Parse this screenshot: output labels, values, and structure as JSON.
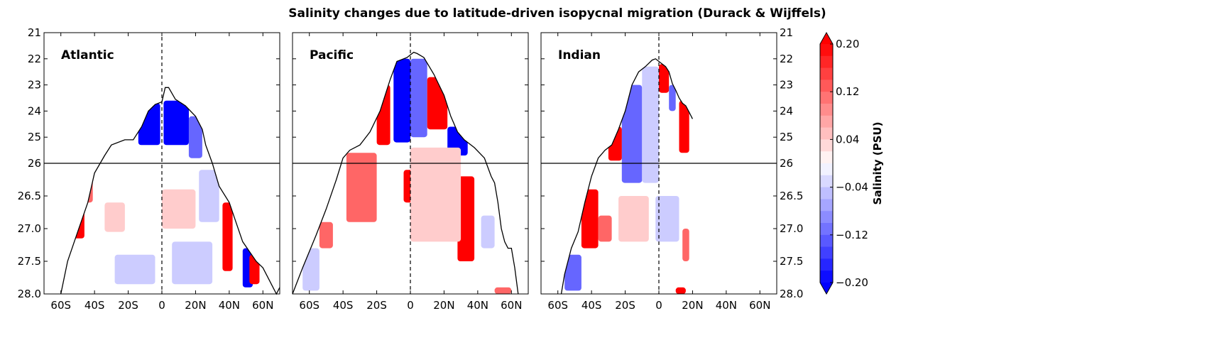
{
  "chart_data": {
    "type": "heatmap",
    "title": "Salinity changes due to latitude-driven isopycnal migration (Durack & Wijffels)",
    "colorbar": {
      "label": "Salinity (PSU)",
      "min": -0.2,
      "max": 0.2,
      "step": 0.02,
      "tick_values": [
        0.2,
        0.12,
        0.04,
        -0.04,
        -0.12,
        -0.2
      ],
      "tick_labels": [
        "0.20",
        "0.12",
        "0.04",
        "−0.04",
        "−0.12",
        "−0.20"
      ],
      "colors": {
        "neg": "#0000ff",
        "zero": "#ffffff",
        "pos": "#ff0000"
      },
      "extend": "both"
    },
    "x_ticks": [
      {
        "lat": -60,
        "label": "60S"
      },
      {
        "lat": -40,
        "label": "40S"
      },
      {
        "lat": -20,
        "label": "20S"
      },
      {
        "lat": 0,
        "label": "0"
      },
      {
        "lat": 20,
        "label": "20N"
      },
      {
        "lat": 40,
        "label": "40N"
      },
      {
        "lat": 60,
        "label": "60N"
      }
    ],
    "xlim": [
      -70,
      70
    ],
    "y_upper": {
      "range": [
        21,
        26
      ],
      "ticks": [
        21,
        22,
        23,
        24,
        25,
        26
      ],
      "labels": [
        "21",
        "22",
        "23",
        "24",
        "25",
        "26"
      ]
    },
    "y_lower": {
      "range": [
        26,
        28
      ],
      "ticks": [
        26.5,
        27.0,
        27.5,
        28.0
      ],
      "labels": [
        "26.5",
        "27.0",
        "27.5",
        "28.0"
      ]
    },
    "divider_density": 26,
    "equator_line": "dashed",
    "panels": [
      {
        "name": "Atlantic",
        "surface_outcrop": [
          [
            -60,
            28.0
          ],
          [
            -56,
            27.5
          ],
          [
            -50,
            27.05
          ],
          [
            -44,
            26.6
          ],
          [
            -40,
            26.15
          ],
          [
            -34,
            25.7
          ],
          [
            -30,
            25.3
          ],
          [
            -22,
            25.1
          ],
          [
            -17,
            25.1
          ],
          [
            -12,
            24.6
          ],
          [
            -8,
            24.0
          ],
          [
            -4,
            23.75
          ],
          [
            0,
            23.65
          ],
          [
            2,
            23.1
          ],
          [
            4,
            23.1
          ],
          [
            8,
            23.55
          ],
          [
            14,
            23.8
          ],
          [
            20,
            24.2
          ],
          [
            24,
            24.7
          ],
          [
            26,
            25.3
          ],
          [
            30,
            26.0
          ],
          [
            34,
            26.35
          ],
          [
            40,
            26.6
          ],
          [
            44,
            26.9
          ],
          [
            48,
            27.2
          ],
          [
            52,
            27.35
          ],
          [
            56,
            27.5
          ],
          [
            60,
            27.6
          ],
          [
            64,
            27.8
          ],
          [
            68,
            28.0
          ],
          [
            70,
            27.9
          ]
        ],
        "anomalies": [
          {
            "lat": [
              -14,
              -1
            ],
            "dens": [
              23.7,
              25.3
            ],
            "value": -0.2
          },
          {
            "lat": [
              1,
              16
            ],
            "dens": [
              23.6,
              25.3
            ],
            "value": -0.2
          },
          {
            "lat": [
              16,
              24
            ],
            "dens": [
              24.2,
              25.8
            ],
            "value": -0.12
          },
          {
            "lat": [
              -54,
              -46
            ],
            "dens": [
              26.6,
              27.15
            ],
            "value": 0.2
          },
          {
            "lat": [
              -47,
              -41
            ],
            "dens": [
              26.2,
              26.6
            ],
            "value": 0.12
          },
          {
            "lat": [
              -34,
              -22
            ],
            "dens": [
              26.6,
              27.05
            ],
            "value": 0.04
          },
          {
            "lat": [
              0,
              20
            ],
            "dens": [
              26.4,
              27.0
            ],
            "value": 0.04
          },
          {
            "lat": [
              22,
              34
            ],
            "dens": [
              26.1,
              26.9
            ],
            "value": -0.04
          },
          {
            "lat": [
              36,
              42
            ],
            "dens": [
              26.6,
              27.65
            ],
            "value": 0.2
          },
          {
            "lat": [
              48,
              54
            ],
            "dens": [
              27.3,
              27.9
            ],
            "value": -0.2
          },
          {
            "lat": [
              52,
              58
            ],
            "dens": [
              27.4,
              27.85
            ],
            "value": 0.2
          },
          {
            "lat": [
              -28,
              -4
            ],
            "dens": [
              27.4,
              27.85
            ],
            "value": -0.04
          },
          {
            "lat": [
              6,
              30
            ],
            "dens": [
              27.2,
              27.85
            ],
            "value": -0.04
          }
        ]
      },
      {
        "name": "Pacific",
        "surface_outcrop": [
          [
            -70,
            28.0
          ],
          [
            -64,
            27.6
          ],
          [
            -56,
            27.1
          ],
          [
            -50,
            26.7
          ],
          [
            -44,
            26.25
          ],
          [
            -40,
            25.8
          ],
          [
            -36,
            25.5
          ],
          [
            -30,
            25.3
          ],
          [
            -24,
            24.8
          ],
          [
            -18,
            24.0
          ],
          [
            -12,
            22.8
          ],
          [
            -8,
            22.1
          ],
          [
            -2,
            21.95
          ],
          [
            0,
            21.85
          ],
          [
            2,
            21.75
          ],
          [
            4,
            21.8
          ],
          [
            8,
            21.95
          ],
          [
            14,
            22.6
          ],
          [
            20,
            23.4
          ],
          [
            24,
            24.2
          ],
          [
            28,
            24.8
          ],
          [
            32,
            25.1
          ],
          [
            38,
            25.4
          ],
          [
            44,
            25.8
          ],
          [
            48,
            26.2
          ],
          [
            50,
            26.3
          ],
          [
            52,
            26.6
          ],
          [
            54,
            27.0
          ],
          [
            56,
            27.2
          ],
          [
            58,
            27.3
          ],
          [
            60,
            27.3
          ],
          [
            62,
            27.6
          ],
          [
            64,
            28.0
          ]
        ],
        "anomalies": [
          {
            "lat": [
              -10,
              0
            ],
            "dens": [
              22.0,
              25.2
            ],
            "value": -0.2
          },
          {
            "lat": [
              0,
              10
            ],
            "dens": [
              22.0,
              25.0
            ],
            "value": -0.12
          },
          {
            "lat": [
              -20,
              -12
            ],
            "dens": [
              23.0,
              25.3
            ],
            "value": 0.2
          },
          {
            "lat": [
              10,
              22
            ],
            "dens": [
              22.7,
              24.7
            ],
            "value": 0.2
          },
          {
            "lat": [
              22,
              34
            ],
            "dens": [
              24.6,
              25.7
            ],
            "value": -0.2
          },
          {
            "lat": [
              -38,
              -20
            ],
            "dens": [
              25.6,
              26.9
            ],
            "value": 0.12
          },
          {
            "lat": [
              28,
              38
            ],
            "dens": [
              26.2,
              27.5
            ],
            "value": 0.2
          },
          {
            "lat": [
              -4,
              2
            ],
            "dens": [
              26.1,
              26.6
            ],
            "value": 0.2
          },
          {
            "lat": [
              0,
              30
            ],
            "dens": [
              25.4,
              27.2
            ],
            "value": 0.04
          },
          {
            "lat": [
              -54,
              -46
            ],
            "dens": [
              26.9,
              27.3
            ],
            "value": 0.12
          },
          {
            "lat": [
              -64,
              -54
            ],
            "dens": [
              27.3,
              27.95
            ],
            "value": -0.04
          },
          {
            "lat": [
              42,
              50
            ],
            "dens": [
              26.8,
              27.3
            ],
            "value": -0.04
          },
          {
            "lat": [
              50,
              60
            ],
            "dens": [
              27.9,
              28.0
            ],
            "value": 0.12
          }
        ]
      },
      {
        "name": "Indian",
        "surface_outcrop": [
          [
            -58,
            28.0
          ],
          [
            -56,
            27.7
          ],
          [
            -52,
            27.3
          ],
          [
            -48,
            27.05
          ],
          [
            -44,
            26.6
          ],
          [
            -40,
            26.2
          ],
          [
            -36,
            25.8
          ],
          [
            -32,
            25.5
          ],
          [
            -28,
            25.3
          ],
          [
            -24,
            24.7
          ],
          [
            -20,
            24.0
          ],
          [
            -16,
            23.0
          ],
          [
            -12,
            22.5
          ],
          [
            -8,
            22.3
          ],
          [
            -4,
            22.05
          ],
          [
            -2,
            22.0
          ],
          [
            0,
            22.1
          ],
          [
            2,
            22.2
          ],
          [
            4,
            22.3
          ],
          [
            6,
            22.5
          ],
          [
            8,
            22.95
          ],
          [
            10,
            23.2
          ],
          [
            12,
            23.5
          ],
          [
            14,
            23.7
          ],
          [
            16,
            23.8
          ],
          [
            18,
            24.05
          ],
          [
            20,
            24.3
          ]
        ],
        "anomalies": [
          {
            "lat": [
              -30,
              -22
            ],
            "dens": [
              24.6,
              25.9
            ],
            "value": 0.2
          },
          {
            "lat": [
              -22,
              -10
            ],
            "dens": [
              23.0,
              26.3
            ],
            "value": -0.12
          },
          {
            "lat": [
              -10,
              0
            ],
            "dens": [
              22.3,
              26.3
            ],
            "value": -0.04
          },
          {
            "lat": [
              0,
              6
            ],
            "dens": [
              22.2,
              23.3
            ],
            "value": 0.2
          },
          {
            "lat": [
              6,
              10
            ],
            "dens": [
              23.0,
              24.0
            ],
            "value": -0.12
          },
          {
            "lat": [
              12,
              18
            ],
            "dens": [
              23.6,
              25.6
            ],
            "value": 0.2
          },
          {
            "lat": [
              -46,
              -36
            ],
            "dens": [
              26.4,
              27.3
            ],
            "value": 0.2
          },
          {
            "lat": [
              -36,
              -28
            ],
            "dens": [
              26.8,
              27.2
            ],
            "value": 0.12
          },
          {
            "lat": [
              -24,
              -6
            ],
            "dens": [
              26.5,
              27.2
            ],
            "value": 0.04
          },
          {
            "lat": [
              -2,
              12
            ],
            "dens": [
              26.5,
              27.2
            ],
            "value": -0.04
          },
          {
            "lat": [
              -56,
              -46
            ],
            "dens": [
              27.4,
              27.95
            ],
            "value": -0.12
          },
          {
            "lat": [
              14,
              18
            ],
            "dens": [
              27.0,
              27.5
            ],
            "value": 0.12
          },
          {
            "lat": [
              10,
              16
            ],
            "dens": [
              27.9,
              28.0
            ],
            "value": 0.2
          }
        ]
      }
    ]
  }
}
